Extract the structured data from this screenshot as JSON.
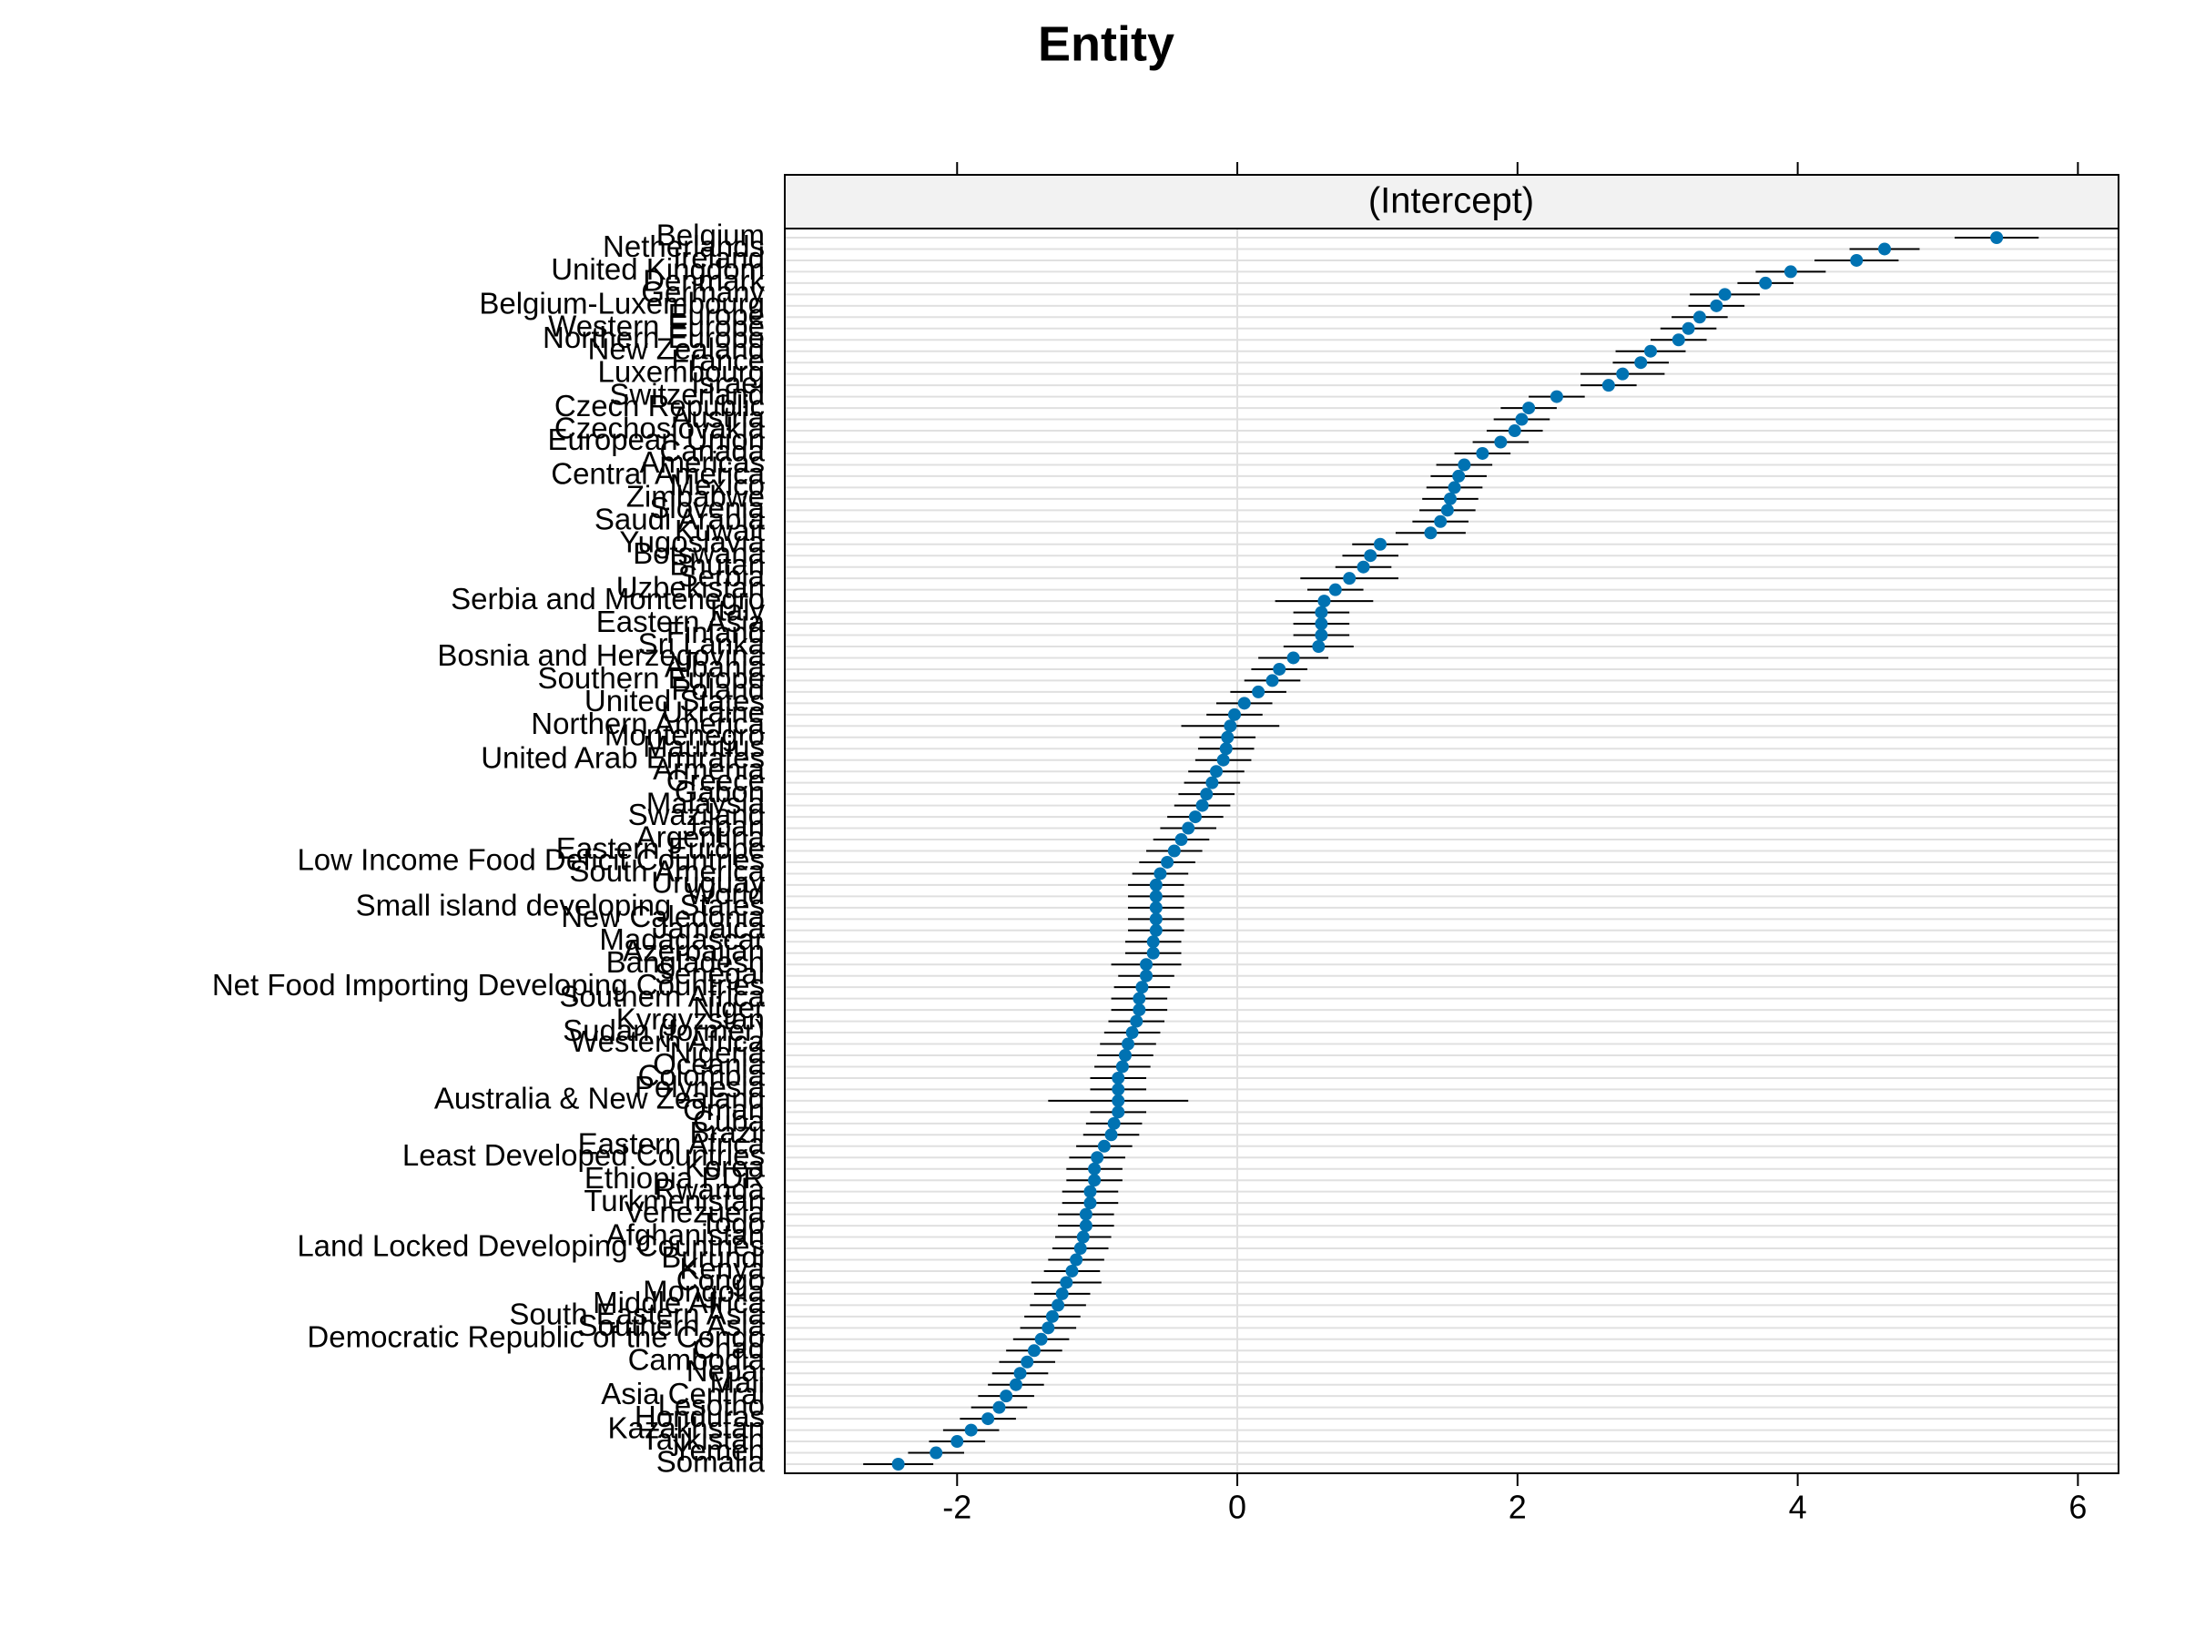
{
  "chart_data": {
    "type": "dotplot",
    "title": "Entity",
    "panel": "(Intercept)",
    "color": "#0072b2",
    "grid": true,
    "xlim": [
      -3.23,
      6.29
    ],
    "xticks": [
      -2,
      0,
      2,
      4,
      6
    ],
    "categories": [
      "Belgium",
      "Netherlands",
      "Ireland",
      "United Kingdom",
      "Denmark",
      "Germany",
      "Belgium-Luxembourg",
      "Europe",
      "Western Europe",
      "Northern Europe",
      "New Zealand",
      "France",
      "Luxembourg",
      "Israel",
      "Switzerland",
      "Czech Republic",
      "Austria",
      "Czechoslovakia",
      "European Union",
      "Canada",
      "Americas",
      "Central America",
      "Mexico",
      "Zimbabwe",
      "Slovenia",
      "Saudi Arabia",
      "Kuwait",
      "Yugoslavia",
      "Botswana",
      "Bhutan",
      "Serbia",
      "Uzbekistan",
      "Serbia and Montenegro",
      "Italy",
      "Eastern Asia",
      "Finland",
      "Sri Lanka",
      "Bosnia and Herzegovina",
      "Albania",
      "Southern Europe",
      "Poland",
      "United States",
      "Ukraine",
      "Northern America",
      "Montenegro",
      "Mauritius",
      "United Arab Emirates",
      "Armenia",
      "Greece",
      "Gabon",
      "Malaysia",
      "Swaziland",
      "Japan",
      "Argentina",
      "Eastern Europe",
      "Low Income Food Deficit Countries",
      "South America",
      "Uruguay",
      "World",
      "Small island developing States",
      "New Caledonia",
      "Jamaica",
      "Madagascar",
      "Azerbaijan",
      "Bangladesh",
      "Senegal",
      "Net Food Importing Developing Countries",
      "Southern Africa",
      "Niger",
      "Kyrgyzstan",
      "Sudan (former)",
      "Western Africa",
      "Nigeria",
      "Oceania",
      "Colombia",
      "Polynesia",
      "Australia & New Zealand",
      "Oman",
      "Cuba",
      "Brazil",
      "Eastern Africa",
      "Least Developed Countries",
      "Korea",
      "Ethiopia PDR",
      "Rwanda",
      "Turkmenistan",
      "Venezuela",
      "Togo",
      "Afghanistan",
      "Land Locked Developing Countries",
      "Burundi",
      "Kenya",
      "Congo",
      "Mongolia",
      "Middle Africa",
      "South Eastern Asia",
      "Southern Asia",
      "Democratic Republic of the Congo",
      "Chad",
      "Cambodia",
      "Nepal",
      "Mali",
      "Asia Central",
      "Lesotho",
      "Honduras",
      "Kazakhstan",
      "Tajikistan",
      "Yemen",
      "Somalia"
    ],
    "values": [
      5.42,
      4.62,
      4.42,
      3.95,
      3.77,
      3.48,
      3.42,
      3.3,
      3.22,
      3.15,
      2.95,
      2.88,
      2.75,
      2.65,
      2.28,
      2.08,
      2.03,
      1.98,
      1.88,
      1.75,
      1.62,
      1.58,
      1.55,
      1.52,
      1.5,
      1.45,
      1.38,
      1.02,
      0.95,
      0.9,
      0.8,
      0.7,
      0.62,
      0.6,
      0.6,
      0.6,
      0.58,
      0.4,
      0.3,
      0.25,
      0.15,
      0.05,
      -0.02,
      -0.05,
      -0.07,
      -0.08,
      -0.1,
      -0.15,
      -0.18,
      -0.22,
      -0.25,
      -0.3,
      -0.35,
      -0.4,
      -0.45,
      -0.5,
      -0.55,
      -0.58,
      -0.58,
      -0.58,
      -0.58,
      -0.58,
      -0.6,
      -0.6,
      -0.65,
      -0.65,
      -0.68,
      -0.7,
      -0.7,
      -0.72,
      -0.75,
      -0.78,
      -0.8,
      -0.82,
      -0.85,
      -0.85,
      -0.85,
      -0.85,
      -0.88,
      -0.9,
      -0.95,
      -1.0,
      -1.02,
      -1.02,
      -1.05,
      -1.05,
      -1.08,
      -1.08,
      -1.1,
      -1.12,
      -1.15,
      -1.18,
      -1.22,
      -1.25,
      -1.28,
      -1.32,
      -1.35,
      -1.4,
      -1.45,
      -1.5,
      -1.55,
      -1.58,
      -1.65,
      -1.7,
      -1.78,
      -1.9,
      -2.0,
      -2.15,
      -2.42
    ],
    "errors": [
      0.3,
      0.25,
      0.3,
      0.25,
      0.2,
      0.25,
      0.2,
      0.2,
      0.2,
      0.2,
      0.25,
      0.2,
      0.3,
      0.2,
      0.2,
      0.2,
      0.2,
      0.2,
      0.2,
      0.2,
      0.2,
      0.2,
      0.2,
      0.2,
      0.2,
      0.2,
      0.25,
      0.2,
      0.2,
      0.2,
      0.35,
      0.2,
      0.35,
      0.2,
      0.2,
      0.2,
      0.25,
      0.25,
      0.2,
      0.2,
      0.2,
      0.2,
      0.2,
      0.35,
      0.2,
      0.2,
      0.2,
      0.2,
      0.2,
      0.2,
      0.2,
      0.2,
      0.2,
      0.2,
      0.2,
      0.2,
      0.2,
      0.2,
      0.2,
      0.2,
      0.2,
      0.2,
      0.2,
      0.2,
      0.25,
      0.2,
      0.2,
      0.2,
      0.2,
      0.2,
      0.2,
      0.2,
      0.2,
      0.2,
      0.2,
      0.2,
      0.5,
      0.2,
      0.2,
      0.2,
      0.2,
      0.2,
      0.2,
      0.2,
      0.2,
      0.2,
      0.2,
      0.2,
      0.2,
      0.2,
      0.2,
      0.2,
      0.25,
      0.2,
      0.2,
      0.2,
      0.2,
      0.2,
      0.2,
      0.2,
      0.2,
      0.2,
      0.2,
      0.2,
      0.2,
      0.2,
      0.2,
      0.2,
      0.25
    ]
  }
}
